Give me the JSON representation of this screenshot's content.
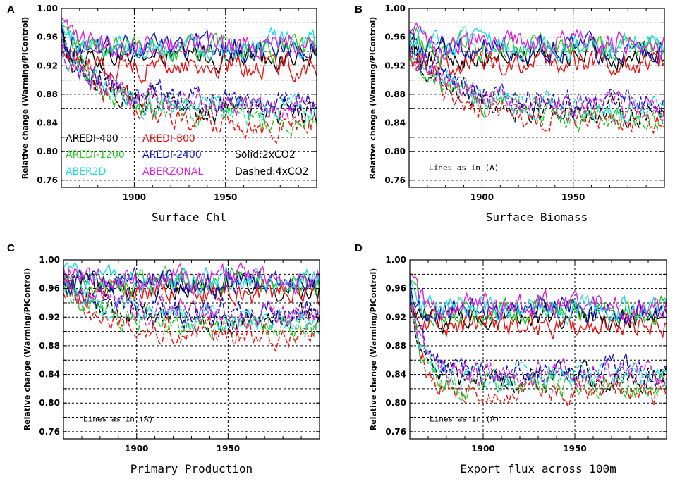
{
  "chart_data": [
    {
      "type": "line",
      "panel_label": "A",
      "title": "",
      "xlabel": "Surface Chl",
      "ylabel": "Relative change (Warming/PIControl)",
      "xlim": [
        1860,
        2000
      ],
      "ylim": [
        0.75,
        1.0
      ],
      "x_ticks": [
        "1900",
        "1950"
      ],
      "y_ticks": [
        "0.76",
        "0.80",
        "0.84",
        "0.88",
        "0.92",
        "0.96",
        "1.00"
      ],
      "grid": true,
      "note": "",
      "upper_band": {
        "name": "Solid:2xCO2",
        "start": 0.975,
        "mean": 0.945,
        "low_member_mean": 0.92
      },
      "lower_band": {
        "name": "Dashed:4xCO2",
        "start": 0.945,
        "end": 0.855,
        "floor": 0.82
      },
      "series": [
        {
          "name": "AREDI-400",
          "color": "#000000"
        },
        {
          "name": "AREDI-800",
          "color": "#ee1111"
        },
        {
          "name": "AREDI-1200",
          "color": "#22cc22"
        },
        {
          "name": "AREDI-2400",
          "color": "#1414c8"
        },
        {
          "name": "ABER2D",
          "color": "#22dddd"
        },
        {
          "name": "ABERZONAL",
          "color": "#dd22dd"
        }
      ],
      "legend_notes": [
        "Solid:2xCO2",
        "Dashed:4xCO2"
      ]
    },
    {
      "type": "line",
      "panel_label": "B",
      "xlabel": "Surface Biomass",
      "ylabel": "Relative change (Warming/PIControl)",
      "xlim": [
        1860,
        2000
      ],
      "ylim": [
        0.75,
        1.0
      ],
      "x_ticks": [
        "1900",
        "1950"
      ],
      "y_ticks": [
        "0.76",
        "0.80",
        "0.84",
        "0.88",
        "0.92",
        "0.96",
        "1.00"
      ],
      "grid": true,
      "note": "Lines as in (A)",
      "upper_band": {
        "start": 0.975,
        "mean": 0.945,
        "low_member_mean": 0.925
      },
      "lower_band": {
        "start": 0.945,
        "end": 0.855,
        "floor": 0.82
      }
    },
    {
      "type": "line",
      "panel_label": "C",
      "xlabel": "Primary Production",
      "ylabel": "Relative change (Warming/PIControl)",
      "xlim": [
        1860,
        2000
      ],
      "ylim": [
        0.75,
        1.0
      ],
      "x_ticks": [
        "1900",
        "1950"
      ],
      "y_ticks": [
        "0.76",
        "0.80",
        "0.84",
        "0.88",
        "0.92",
        "0.96",
        "1.00"
      ],
      "grid": true,
      "note": "Lines as in (A)",
      "upper_band": {
        "start": 0.985,
        "mean": 0.968,
        "low_member_mean": 0.955
      },
      "lower_band": {
        "start": 0.965,
        "end": 0.915,
        "floor": 0.895
      }
    },
    {
      "type": "line",
      "panel_label": "D",
      "xlabel": "Export flux across 100m",
      "ylabel": "Relative change (Warming/PIControl)",
      "xlim": [
        1860,
        2000
      ],
      "ylim": [
        0.75,
        1.0
      ],
      "x_ticks": [
        "1900",
        "1950"
      ],
      "y_ticks": [
        "0.76",
        "0.80",
        "0.84",
        "0.88",
        "0.92",
        "0.96",
        "1.00"
      ],
      "grid": true,
      "note": "Lines as in (A)",
      "upper_band": {
        "start": 0.965,
        "mean": 0.93,
        "low_member_mean": 0.91
      },
      "lower_band": {
        "start": 0.955,
        "end": 0.835,
        "floor": 0.815,
        "fast": true
      }
    }
  ]
}
